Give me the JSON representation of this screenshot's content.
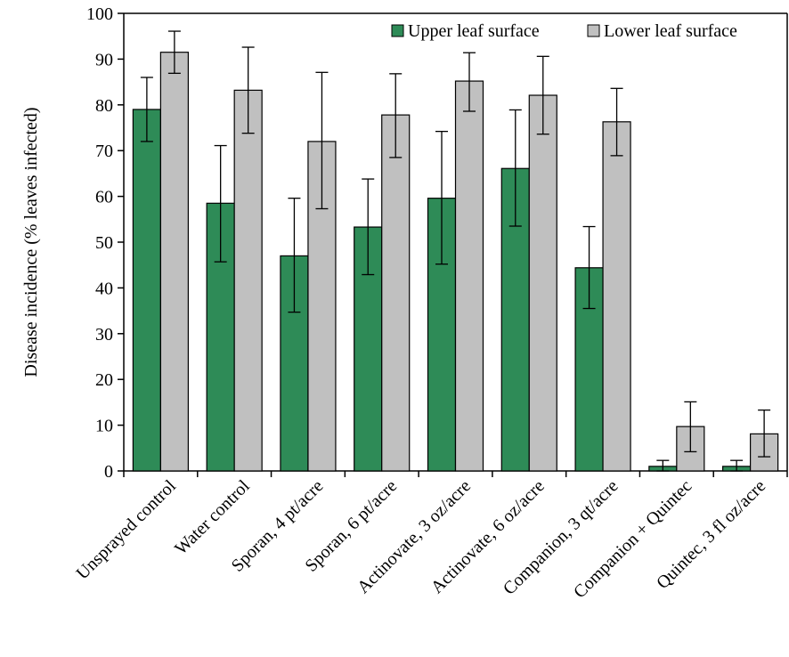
{
  "chart_data": {
    "type": "bar",
    "title": "",
    "xlabel": "",
    "ylabel": "Disease incidence (% leaves infected)",
    "ylim": [
      0,
      100
    ],
    "yticks": [
      0,
      10,
      20,
      30,
      40,
      50,
      60,
      70,
      80,
      90,
      100
    ],
    "grid": false,
    "legend_position": "top-right",
    "categories": [
      "Unsprayed control",
      "Water control",
      "Sporan, 4 pt/acre",
      "Sporan, 6 pt/acre",
      "Actinovate, 3 oz/acre",
      "Actinovate, 6 oz/acre",
      "Companion, 3 qt/acre",
      "Companion + Quintec",
      "Quintec, 3 fl oz/acre"
    ],
    "series": [
      {
        "name": "Upper leaf surface",
        "color": "#2e8b57",
        "values": [
          79,
          58.5,
          47,
          53.3,
          59.6,
          66.1,
          44.4,
          1,
          1
        ],
        "error_low": [
          72,
          45.7,
          34.7,
          42.9,
          45.2,
          53.5,
          35.5,
          0,
          0
        ],
        "error_high": [
          86,
          71.1,
          59.6,
          63.8,
          74.2,
          78.9,
          53.4,
          2.3,
          2.3
        ]
      },
      {
        "name": "Lower leaf surface",
        "color": "#c0c0c0",
        "values": [
          91.5,
          83.2,
          72,
          77.8,
          85.2,
          82.1,
          76.3,
          9.7,
          8.1
        ],
        "error_low": [
          86.9,
          73.8,
          57.3,
          68.5,
          78.6,
          73.6,
          68.9,
          4.2,
          3.1
        ],
        "error_high": [
          96.1,
          92.6,
          87.1,
          86.8,
          91.4,
          90.6,
          83.6,
          15.1,
          13.3
        ]
      }
    ]
  }
}
